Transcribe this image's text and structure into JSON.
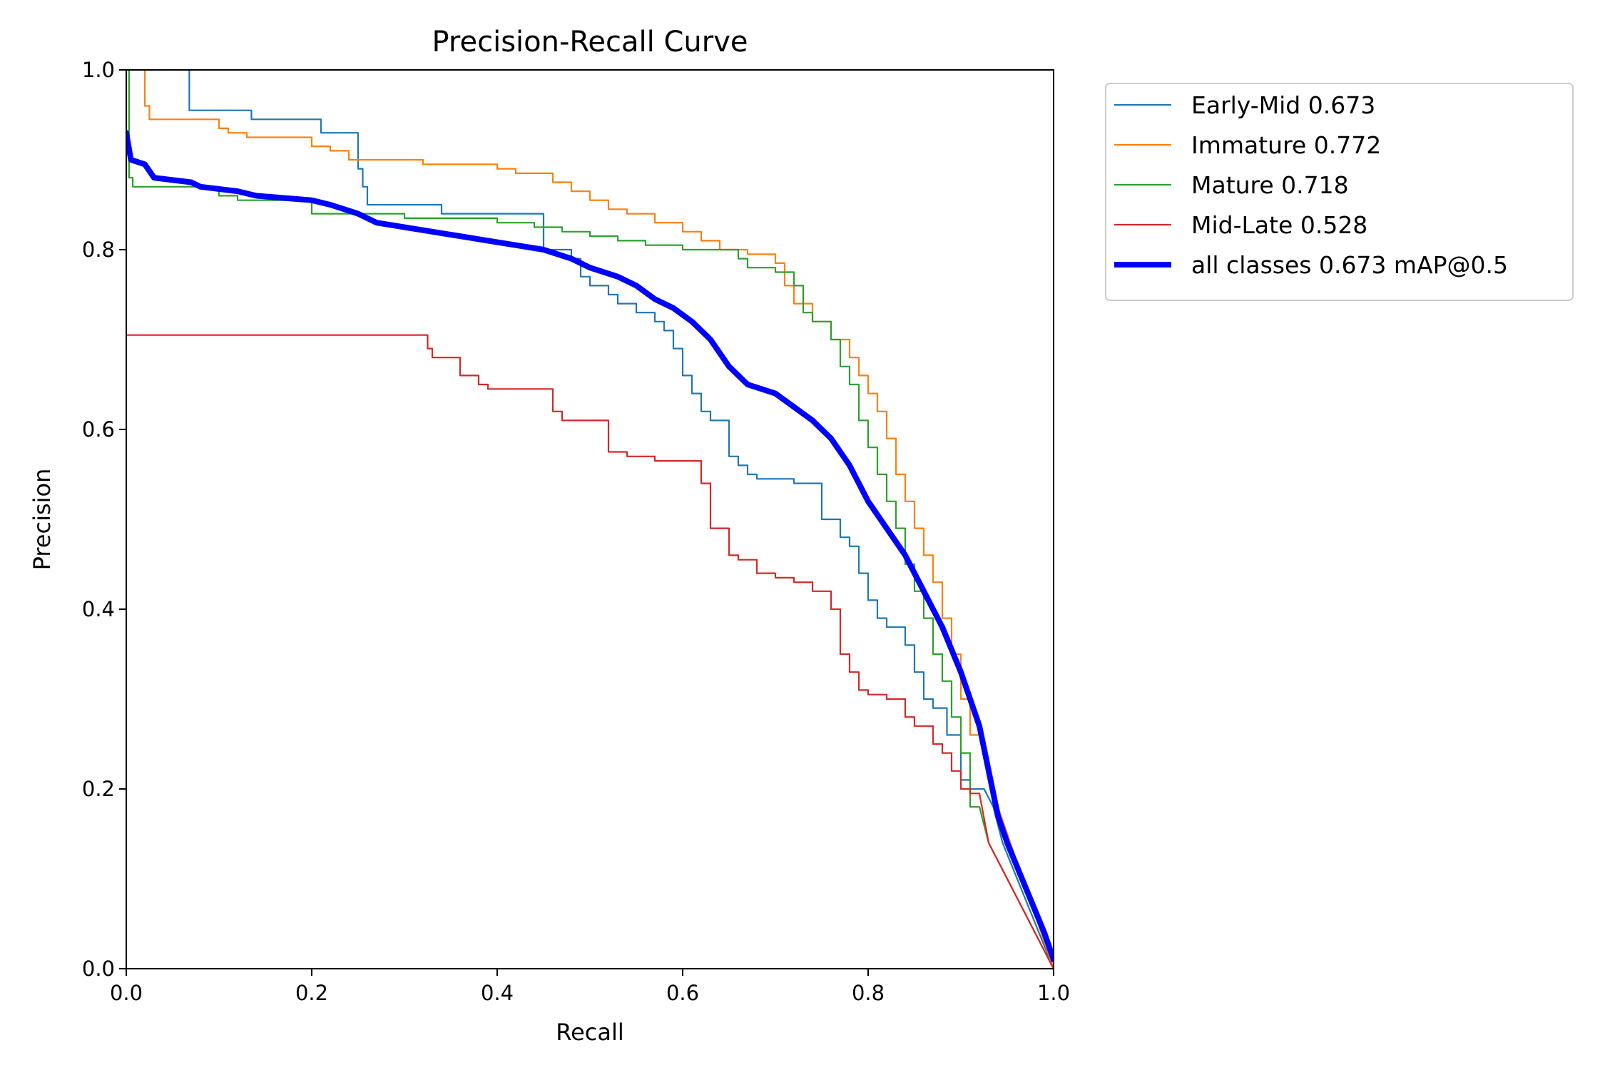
{
  "chart_data": {
    "type": "line",
    "title": "Precision-Recall Curve",
    "xlabel": "Recall",
    "ylabel": "Precision",
    "xlim": [
      0,
      1
    ],
    "ylim": [
      0,
      1
    ],
    "xticks": [
      "0.0",
      "0.2",
      "0.4",
      "0.6",
      "0.8",
      "1.0"
    ],
    "yticks": [
      "0.0",
      "0.2",
      "0.4",
      "0.6",
      "0.8",
      "1.0"
    ],
    "grid": false,
    "legend_position": "outside-top-right",
    "series": [
      {
        "name": "Early-Mid 0.673",
        "color": "#1f77b4",
        "points": [
          [
            0.003,
            1.0
          ],
          [
            0.007,
            1.0
          ],
          [
            0.068,
            1.0
          ],
          [
            0.07,
            0.955
          ],
          [
            0.135,
            0.955
          ],
          [
            0.137,
            0.945
          ],
          [
            0.21,
            0.945
          ],
          [
            0.22,
            0.93
          ],
          [
            0.25,
            0.93
          ],
          [
            0.255,
            0.89
          ],
          [
            0.26,
            0.87
          ],
          [
            0.265,
            0.85
          ],
          [
            0.34,
            0.85
          ],
          [
            0.345,
            0.84
          ],
          [
            0.45,
            0.84
          ],
          [
            0.452,
            0.8
          ],
          [
            0.48,
            0.8
          ],
          [
            0.49,
            0.79
          ],
          [
            0.5,
            0.77
          ],
          [
            0.52,
            0.76
          ],
          [
            0.53,
            0.75
          ],
          [
            0.55,
            0.74
          ],
          [
            0.57,
            0.73
          ],
          [
            0.58,
            0.72
          ],
          [
            0.59,
            0.71
          ],
          [
            0.6,
            0.69
          ],
          [
            0.61,
            0.66
          ],
          [
            0.62,
            0.64
          ],
          [
            0.63,
            0.62
          ],
          [
            0.65,
            0.61
          ],
          [
            0.66,
            0.57
          ],
          [
            0.67,
            0.56
          ],
          [
            0.68,
            0.55
          ],
          [
            0.7,
            0.545
          ],
          [
            0.72,
            0.545
          ],
          [
            0.75,
            0.54
          ],
          [
            0.77,
            0.5
          ],
          [
            0.78,
            0.48
          ],
          [
            0.79,
            0.47
          ],
          [
            0.8,
            0.44
          ],
          [
            0.81,
            0.41
          ],
          [
            0.82,
            0.39
          ],
          [
            0.84,
            0.38
          ],
          [
            0.85,
            0.36
          ],
          [
            0.86,
            0.33
          ],
          [
            0.87,
            0.3
          ],
          [
            0.885,
            0.29
          ],
          [
            0.9,
            0.26
          ],
          [
            0.91,
            0.21
          ],
          [
            0.925,
            0.2
          ],
          [
            0.935,
            0.18
          ],
          [
            0.94,
            0.16
          ],
          [
            0.945,
            0.14
          ],
          [
            1.0,
            0.0
          ]
        ]
      },
      {
        "name": "Immature 0.772",
        "color": "#ff7f0e",
        "points": [
          [
            0.02,
            1.0
          ],
          [
            0.025,
            0.96
          ],
          [
            0.03,
            0.945
          ],
          [
            0.1,
            0.945
          ],
          [
            0.11,
            0.935
          ],
          [
            0.13,
            0.93
          ],
          [
            0.2,
            0.925
          ],
          [
            0.22,
            0.915
          ],
          [
            0.24,
            0.91
          ],
          [
            0.27,
            0.9
          ],
          [
            0.32,
            0.9
          ],
          [
            0.35,
            0.895
          ],
          [
            0.4,
            0.895
          ],
          [
            0.42,
            0.89
          ],
          [
            0.46,
            0.885
          ],
          [
            0.48,
            0.875
          ],
          [
            0.5,
            0.865
          ],
          [
            0.52,
            0.855
          ],
          [
            0.54,
            0.845
          ],
          [
            0.57,
            0.84
          ],
          [
            0.6,
            0.83
          ],
          [
            0.62,
            0.82
          ],
          [
            0.64,
            0.81
          ],
          [
            0.67,
            0.8
          ],
          [
            0.7,
            0.795
          ],
          [
            0.71,
            0.785
          ],
          [
            0.72,
            0.76
          ],
          [
            0.74,
            0.74
          ],
          [
            0.76,
            0.72
          ],
          [
            0.78,
            0.7
          ],
          [
            0.79,
            0.68
          ],
          [
            0.8,
            0.66
          ],
          [
            0.81,
            0.64
          ],
          [
            0.82,
            0.62
          ],
          [
            0.83,
            0.59
          ],
          [
            0.84,
            0.55
          ],
          [
            0.85,
            0.52
          ],
          [
            0.86,
            0.49
          ],
          [
            0.87,
            0.46
          ],
          [
            0.88,
            0.43
          ],
          [
            0.89,
            0.39
          ],
          [
            0.9,
            0.35
          ],
          [
            0.91,
            0.3
          ],
          [
            0.92,
            0.26
          ],
          [
            0.93,
            0.22
          ],
          [
            0.94,
            0.18
          ],
          [
            0.95,
            0.15
          ],
          [
            1.0,
            0.0
          ]
        ]
      },
      {
        "name": "Mature 0.718",
        "color": "#2ca02c",
        "points": [
          [
            0.003,
            1.0
          ],
          [
            0.007,
            0.88
          ],
          [
            0.01,
            0.87
          ],
          [
            0.1,
            0.87
          ],
          [
            0.12,
            0.86
          ],
          [
            0.2,
            0.855
          ],
          [
            0.22,
            0.84
          ],
          [
            0.3,
            0.84
          ],
          [
            0.33,
            0.835
          ],
          [
            0.4,
            0.835
          ],
          [
            0.44,
            0.83
          ],
          [
            0.47,
            0.825
          ],
          [
            0.5,
            0.82
          ],
          [
            0.53,
            0.815
          ],
          [
            0.56,
            0.81
          ],
          [
            0.6,
            0.805
          ],
          [
            0.63,
            0.8
          ],
          [
            0.66,
            0.8
          ],
          [
            0.67,
            0.79
          ],
          [
            0.7,
            0.78
          ],
          [
            0.72,
            0.775
          ],
          [
            0.73,
            0.76
          ],
          [
            0.74,
            0.73
          ],
          [
            0.76,
            0.72
          ],
          [
            0.77,
            0.7
          ],
          [
            0.78,
            0.67
          ],
          [
            0.79,
            0.65
          ],
          [
            0.8,
            0.61
          ],
          [
            0.81,
            0.58
          ],
          [
            0.82,
            0.55
          ],
          [
            0.83,
            0.52
          ],
          [
            0.84,
            0.49
          ],
          [
            0.85,
            0.45
          ],
          [
            0.86,
            0.42
          ],
          [
            0.87,
            0.39
          ],
          [
            0.88,
            0.35
          ],
          [
            0.89,
            0.32
          ],
          [
            0.9,
            0.28
          ],
          [
            0.91,
            0.24
          ],
          [
            0.92,
            0.18
          ],
          [
            0.93,
            0.14
          ],
          [
            1.0,
            0.0
          ]
        ]
      },
      {
        "name": "Mid-Late 0.528",
        "color": "#d62728",
        "points": [
          [
            0.0,
            0.705
          ],
          [
            0.325,
            0.705
          ],
          [
            0.33,
            0.69
          ],
          [
            0.36,
            0.68
          ],
          [
            0.38,
            0.66
          ],
          [
            0.39,
            0.65
          ],
          [
            0.41,
            0.645
          ],
          [
            0.46,
            0.645
          ],
          [
            0.47,
            0.62
          ],
          [
            0.49,
            0.61
          ],
          [
            0.52,
            0.61
          ],
          [
            0.54,
            0.575
          ],
          [
            0.57,
            0.57
          ],
          [
            0.62,
            0.565
          ],
          [
            0.63,
            0.54
          ],
          [
            0.65,
            0.49
          ],
          [
            0.66,
            0.46
          ],
          [
            0.68,
            0.455
          ],
          [
            0.7,
            0.44
          ],
          [
            0.72,
            0.435
          ],
          [
            0.74,
            0.43
          ],
          [
            0.76,
            0.42
          ],
          [
            0.77,
            0.4
          ],
          [
            0.78,
            0.35
          ],
          [
            0.79,
            0.33
          ],
          [
            0.8,
            0.31
          ],
          [
            0.82,
            0.305
          ],
          [
            0.84,
            0.3
          ],
          [
            0.85,
            0.28
          ],
          [
            0.87,
            0.27
          ],
          [
            0.88,
            0.25
          ],
          [
            0.89,
            0.24
          ],
          [
            0.9,
            0.22
          ],
          [
            0.91,
            0.2
          ],
          [
            0.92,
            0.195
          ],
          [
            0.93,
            0.14
          ],
          [
            1.0,
            0.0
          ]
        ]
      },
      {
        "name": "all classes 0.673 mAP@0.5",
        "color": "#0000ff",
        "thick": true,
        "points": [
          [
            0.0,
            0.93
          ],
          [
            0.005,
            0.9
          ],
          [
            0.02,
            0.895
          ],
          [
            0.03,
            0.88
          ],
          [
            0.07,
            0.875
          ],
          [
            0.08,
            0.87
          ],
          [
            0.12,
            0.865
          ],
          [
            0.14,
            0.86
          ],
          [
            0.2,
            0.855
          ],
          [
            0.22,
            0.85
          ],
          [
            0.25,
            0.84
          ],
          [
            0.27,
            0.83
          ],
          [
            0.33,
            0.82
          ],
          [
            0.36,
            0.815
          ],
          [
            0.39,
            0.81
          ],
          [
            0.42,
            0.805
          ],
          [
            0.45,
            0.8
          ],
          [
            0.48,
            0.79
          ],
          [
            0.5,
            0.78
          ],
          [
            0.53,
            0.77
          ],
          [
            0.55,
            0.76
          ],
          [
            0.57,
            0.745
          ],
          [
            0.59,
            0.735
          ],
          [
            0.61,
            0.72
          ],
          [
            0.63,
            0.7
          ],
          [
            0.65,
            0.67
          ],
          [
            0.67,
            0.65
          ],
          [
            0.7,
            0.64
          ],
          [
            0.72,
            0.625
          ],
          [
            0.74,
            0.61
          ],
          [
            0.76,
            0.59
          ],
          [
            0.78,
            0.56
          ],
          [
            0.8,
            0.52
          ],
          [
            0.82,
            0.49
          ],
          [
            0.84,
            0.46
          ],
          [
            0.86,
            0.42
          ],
          [
            0.88,
            0.38
          ],
          [
            0.9,
            0.33
          ],
          [
            0.91,
            0.3
          ],
          [
            0.92,
            0.27
          ],
          [
            0.93,
            0.22
          ],
          [
            0.94,
            0.17
          ],
          [
            0.95,
            0.14
          ],
          [
            0.97,
            0.09
          ],
          [
            0.99,
            0.04
          ],
          [
            1.0,
            0.01
          ]
        ]
      }
    ]
  }
}
